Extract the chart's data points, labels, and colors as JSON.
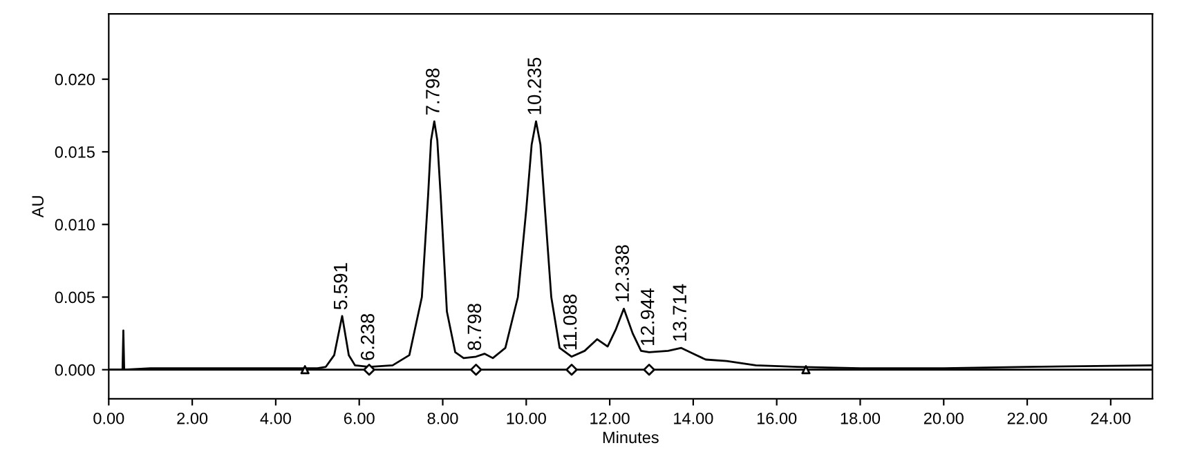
{
  "chart_data": {
    "type": "line",
    "xlabel": "Minutes",
    "ylabel": "AU",
    "xlim": [
      0,
      25
    ],
    "ylim": [
      -0.002,
      0.0245
    ],
    "xticks": [
      {
        "value": 0,
        "label": "0.00"
      },
      {
        "value": 2,
        "label": "2.00"
      },
      {
        "value": 4,
        "label": "4.00"
      },
      {
        "value": 6,
        "label": "6.00"
      },
      {
        "value": 8,
        "label": "8.00"
      },
      {
        "value": 10,
        "label": "10.00"
      },
      {
        "value": 12,
        "label": "12.00"
      },
      {
        "value": 14,
        "label": "14.00"
      },
      {
        "value": 16,
        "label": "16.00"
      },
      {
        "value": 18,
        "label": "18.00"
      },
      {
        "value": 20,
        "label": "20.00"
      },
      {
        "value": 22,
        "label": "22.00"
      },
      {
        "value": 24,
        "label": "24.00"
      }
    ],
    "yticks": [
      {
        "value": 0,
        "label": "0.000"
      },
      {
        "value": 0.005,
        "label": "0.005"
      },
      {
        "value": 0.01,
        "label": "0.010"
      },
      {
        "value": 0.015,
        "label": "0.015"
      },
      {
        "value": 0.02,
        "label": "0.020"
      }
    ],
    "grid": false,
    "legend": false,
    "series": [
      {
        "color": "#000000",
        "x": [
          0.0,
          0.33,
          0.35,
          0.37,
          1.0,
          3.0,
          5.0,
          5.2,
          5.4,
          5.591,
          5.75,
          5.9,
          6.238,
          6.8,
          7.2,
          7.5,
          7.65,
          7.72,
          7.798,
          7.87,
          7.95,
          8.1,
          8.3,
          8.5,
          8.798,
          9.0,
          9.2,
          9.5,
          9.8,
          10.0,
          10.13,
          10.235,
          10.34,
          10.45,
          10.6,
          10.8,
          11.088,
          11.4,
          11.7,
          11.95,
          12.15,
          12.338,
          12.55,
          12.75,
          12.944,
          13.4,
          13.714,
          14.0,
          14.3,
          14.8,
          15.5,
          16.5,
          18.0,
          20.0,
          22.0,
          25.0
        ],
        "values": [
          0.0,
          0.0,
          0.0027,
          0.0,
          0.0001,
          0.0001,
          0.0001,
          0.0002,
          0.001,
          0.0037,
          0.001,
          0.0003,
          0.0002,
          0.0003,
          0.001,
          0.005,
          0.012,
          0.0158,
          0.0171,
          0.0158,
          0.012,
          0.004,
          0.0012,
          0.0008,
          0.0009,
          0.0011,
          0.0008,
          0.0015,
          0.005,
          0.011,
          0.0155,
          0.0171,
          0.0155,
          0.011,
          0.005,
          0.0015,
          0.0009,
          0.0013,
          0.0021,
          0.0016,
          0.0028,
          0.0042,
          0.0025,
          0.0013,
          0.0012,
          0.0013,
          0.0015,
          0.0011,
          0.0007,
          0.0006,
          0.0003,
          0.0002,
          0.0001,
          0.0001,
          0.0002,
          0.0003
        ]
      },
      {
        "type": "scatter",
        "color": "#000000",
        "marker": "triangle",
        "x": [
          4.7,
          16.7
        ],
        "values": [
          0,
          0
        ]
      },
      {
        "type": "scatter",
        "color": "#000000",
        "marker": "diamond",
        "x": [
          6.238,
          8.798,
          11.088,
          12.944
        ],
        "values": [
          0,
          0,
          0,
          0
        ]
      }
    ],
    "ref_lines": [
      {
        "axis": "y",
        "value": 0,
        "color": "#000000"
      }
    ],
    "annotations": [
      {
        "text": "5.591",
        "x": 5.591,
        "y": 0.0037
      },
      {
        "text": "6.238",
        "x": 6.238,
        "y": 0.0002
      },
      {
        "text": "7.798",
        "x": 7.798,
        "y": 0.0171
      },
      {
        "text": "8.798",
        "x": 8.798,
        "y": 0.0009
      },
      {
        "text": "10.235",
        "x": 10.235,
        "y": 0.0171
      },
      {
        "text": "11.088",
        "x": 11.088,
        "y": 0.0009
      },
      {
        "text": "12.338",
        "x": 12.338,
        "y": 0.0042
      },
      {
        "text": "12.944",
        "x": 12.944,
        "y": 0.0012
      },
      {
        "text": "13.714",
        "x": 13.714,
        "y": 0.0015
      }
    ]
  }
}
